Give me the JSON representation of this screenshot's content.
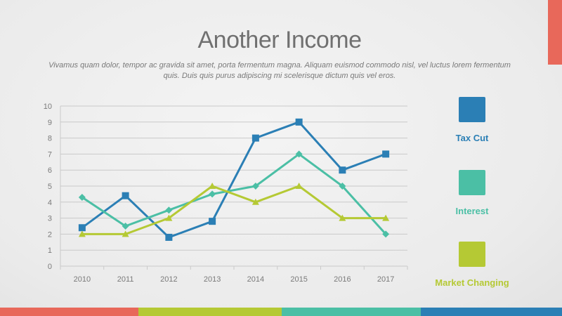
{
  "slide": {
    "title": "Another Income",
    "subtitle": "Vivamus quam dolor, tempor ac gravida sit amet, porta fermentum magna. Aliquam euismod commodo nisl, vel luctus lorem fermentum quis. Duis quis purus adipiscing mi scelerisque dictum quis vel eros."
  },
  "colors": {
    "accent_corner": "#e8685a",
    "grid": "#c9c9c9",
    "axis_text": "#7a7a7a",
    "bottom_bar": [
      "#e8685a",
      "#b5c934",
      "#4bbfa5",
      "#2b7fb5"
    ]
  },
  "chart_data": {
    "type": "line",
    "title": "",
    "xlabel": "",
    "ylabel": "",
    "categories": [
      "2010",
      "2011",
      "2012",
      "2013",
      "2014",
      "2015",
      "2016",
      "2017"
    ],
    "ylim": [
      0,
      10
    ],
    "yticks": [
      0,
      1,
      2,
      3,
      4,
      5,
      6,
      7,
      8,
      9,
      10
    ],
    "grid": true,
    "legend_position": "right",
    "series": [
      {
        "name": "Tax Cut",
        "color": "#2b7fb5",
        "marker": "square",
        "values": [
          2.4,
          4.4,
          1.8,
          2.8,
          8.0,
          9.0,
          6.0,
          7.0
        ]
      },
      {
        "name": "Interest",
        "color": "#4bbfa5",
        "marker": "diamond",
        "values": [
          4.3,
          2.5,
          3.5,
          4.5,
          5.0,
          7.0,
          5.0,
          2.0
        ]
      },
      {
        "name": "Market Changing",
        "color": "#b5c934",
        "marker": "triangle",
        "values": [
          2.0,
          2.0,
          3.0,
          5.0,
          4.0,
          5.0,
          3.0,
          3.0
        ]
      }
    ]
  }
}
